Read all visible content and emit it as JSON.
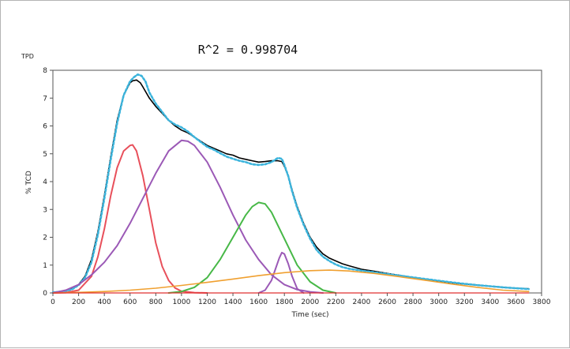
{
  "panel_label": "TPD",
  "chart_data": {
    "type": "line",
    "title": "R^2 = 0.998704",
    "xlabel": "Time (sec)",
    "ylabel": "% TCD",
    "xlim": [
      0,
      3800
    ],
    "ylim": [
      0,
      8
    ],
    "x_ticks": [
      0,
      200,
      400,
      600,
      800,
      1000,
      1200,
      1400,
      1600,
      1800,
      2000,
      2200,
      2400,
      2600,
      2800,
      3000,
      3200,
      3400,
      3600,
      3800
    ],
    "y_ticks": [
      0,
      1,
      2,
      3,
      4,
      5,
      6,
      7,
      8
    ],
    "grid": false,
    "legend": "none",
    "series": [
      {
        "color": "#000000",
        "style": "solid",
        "width": 1.6,
        "x": [
          0,
          50,
          100,
          150,
          200,
          250,
          300,
          350,
          400,
          450,
          500,
          550,
          600,
          620,
          650,
          680,
          700,
          750,
          800,
          850,
          900,
          950,
          1000,
          1050,
          1100,
          1150,
          1200,
          1250,
          1300,
          1350,
          1400,
          1450,
          1500,
          1550,
          1600,
          1650,
          1700,
          1750,
          1780,
          1800,
          1830,
          1860,
          1900,
          1950,
          2000,
          2050,
          2100,
          2150,
          2200,
          2250,
          2300,
          2400,
          2500,
          2600,
          2700,
          2800,
          2900,
          3000,
          3100,
          3200,
          3300,
          3400,
          3500,
          3600,
          3700
        ],
        "values": [
          0.02,
          0.05,
          0.08,
          0.15,
          0.3,
          0.6,
          1.2,
          2.2,
          3.5,
          4.9,
          6.2,
          7.1,
          7.55,
          7.62,
          7.65,
          7.55,
          7.4,
          7.0,
          6.7,
          6.45,
          6.2,
          6.0,
          5.85,
          5.75,
          5.6,
          5.45,
          5.3,
          5.2,
          5.1,
          5.0,
          4.95,
          4.85,
          4.8,
          4.75,
          4.7,
          4.72,
          4.75,
          4.75,
          4.72,
          4.55,
          4.2,
          3.7,
          3.1,
          2.5,
          2.0,
          1.65,
          1.4,
          1.25,
          1.15,
          1.05,
          0.98,
          0.85,
          0.78,
          0.7,
          0.63,
          0.55,
          0.48,
          0.42,
          0.36,
          0.32,
          0.28,
          0.24,
          0.2,
          0.17,
          0.15
        ]
      },
      {
        "color": "#3cb4dc",
        "style": "dotted",
        "width": 2.6,
        "x": [
          0,
          50,
          100,
          150,
          200,
          250,
          300,
          350,
          400,
          450,
          500,
          550,
          600,
          630,
          660,
          690,
          720,
          750,
          800,
          850,
          900,
          950,
          1000,
          1050,
          1100,
          1150,
          1200,
          1250,
          1300,
          1350,
          1400,
          1450,
          1500,
          1550,
          1600,
          1650,
          1700,
          1750,
          1780,
          1800,
          1830,
          1860,
          1900,
          1950,
          2000,
          2050,
          2100,
          2150,
          2200,
          2250,
          2300,
          2400,
          2500,
          2600,
          2700,
          2800,
          2900,
          3000,
          3100,
          3200,
          3300,
          3400,
          3500,
          3600,
          3700
        ],
        "values": [
          0.02,
          0.04,
          0.07,
          0.13,
          0.28,
          0.55,
          1.1,
          2.1,
          3.4,
          4.8,
          6.1,
          7.1,
          7.6,
          7.75,
          7.85,
          7.8,
          7.6,
          7.2,
          6.8,
          6.5,
          6.2,
          6.05,
          5.95,
          5.8,
          5.6,
          5.42,
          5.25,
          5.15,
          5.02,
          4.9,
          4.82,
          4.75,
          4.7,
          4.62,
          4.6,
          4.62,
          4.7,
          4.85,
          4.82,
          4.6,
          4.2,
          3.65,
          3.05,
          2.45,
          1.95,
          1.55,
          1.3,
          1.15,
          1.02,
          0.93,
          0.87,
          0.8,
          0.74,
          0.68,
          0.62,
          0.56,
          0.5,
          0.44,
          0.38,
          0.33,
          0.28,
          0.24,
          0.2,
          0.17,
          0.14
        ]
      },
      {
        "color": "#e8505b",
        "style": "solid",
        "width": 2.0,
        "x": [
          0,
          100,
          200,
          300,
          350,
          400,
          450,
          500,
          550,
          600,
          620,
          650,
          700,
          750,
          800,
          850,
          900,
          950,
          1000,
          1100,
          1200
        ],
        "values": [
          0.0,
          0.01,
          0.1,
          0.6,
          1.3,
          2.3,
          3.5,
          4.5,
          5.1,
          5.3,
          5.32,
          5.1,
          4.2,
          3.0,
          1.8,
          0.95,
          0.45,
          0.18,
          0.06,
          0.01,
          0.0
        ]
      },
      {
        "color": "#9b59b6",
        "style": "solid",
        "width": 2.0,
        "x": [
          0,
          100,
          200,
          300,
          400,
          500,
          600,
          700,
          800,
          900,
          1000,
          1050,
          1100,
          1200,
          1300,
          1400,
          1500,
          1600,
          1700,
          1800,
          1900,
          2000,
          2100
        ],
        "values": [
          0.0,
          0.1,
          0.3,
          0.65,
          1.1,
          1.7,
          2.5,
          3.4,
          4.3,
          5.1,
          5.48,
          5.45,
          5.3,
          4.7,
          3.8,
          2.8,
          1.9,
          1.2,
          0.65,
          0.3,
          0.12,
          0.04,
          0.0
        ]
      },
      {
        "color": "#47b847",
        "style": "solid",
        "width": 2.0,
        "x": [
          900,
          1000,
          1100,
          1200,
          1300,
          1400,
          1500,
          1550,
          1600,
          1650,
          1700,
          1800,
          1900,
          2000,
          2100,
          2200
        ],
        "values": [
          0.0,
          0.05,
          0.2,
          0.55,
          1.2,
          2.0,
          2.8,
          3.1,
          3.25,
          3.2,
          2.9,
          1.95,
          1.0,
          0.4,
          0.1,
          0.0
        ]
      },
      {
        "color": "#9b59b6",
        "style": "solid",
        "width": 2.0,
        "x": [
          1600,
          1650,
          1700,
          1730,
          1760,
          1780,
          1800,
          1830,
          1860,
          1900,
          1950
        ],
        "values": [
          0.0,
          0.1,
          0.45,
          0.85,
          1.25,
          1.45,
          1.4,
          1.05,
          0.6,
          0.15,
          0.0
        ]
      },
      {
        "color": "#f0a030",
        "style": "solid",
        "width": 1.6,
        "x": [
          0,
          200,
          400,
          600,
          800,
          1000,
          1200,
          1400,
          1600,
          1800,
          2000,
          2150,
          2300,
          2500,
          2700,
          2900,
          3100,
          3300,
          3500,
          3700
        ],
        "values": [
          0.0,
          0.02,
          0.05,
          0.1,
          0.17,
          0.27,
          0.38,
          0.5,
          0.62,
          0.73,
          0.8,
          0.82,
          0.79,
          0.7,
          0.58,
          0.45,
          0.32,
          0.2,
          0.1,
          0.05
        ]
      },
      {
        "color": "#e03030",
        "style": "solid",
        "width": 1.2,
        "x": [
          0,
          3700
        ],
        "values": [
          0.0,
          0.0
        ]
      }
    ]
  }
}
